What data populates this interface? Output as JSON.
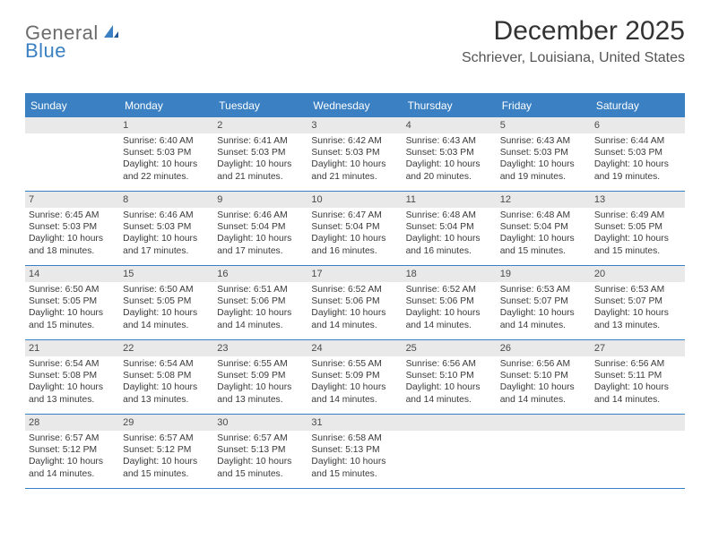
{
  "logo": {
    "text1": "General",
    "text2": "Blue"
  },
  "title": "December 2025",
  "location": "Schriever, Louisiana, United States",
  "colors": {
    "accent": "#3a80c3",
    "grey_band": "#e9e9e9",
    "text": "#323232",
    "logo_grey": "#6c6c6c",
    "background": "#ffffff"
  },
  "dow": [
    "Sunday",
    "Monday",
    "Tuesday",
    "Wednesday",
    "Thursday",
    "Friday",
    "Saturday"
  ],
  "weeks": [
    [
      {
        "n": "",
        "sr": "",
        "ss": "",
        "d1": "",
        "d2": ""
      },
      {
        "n": "1",
        "sr": "Sunrise: 6:40 AM",
        "ss": "Sunset: 5:03 PM",
        "d1": "Daylight: 10 hours",
        "d2": "and 22 minutes."
      },
      {
        "n": "2",
        "sr": "Sunrise: 6:41 AM",
        "ss": "Sunset: 5:03 PM",
        "d1": "Daylight: 10 hours",
        "d2": "and 21 minutes."
      },
      {
        "n": "3",
        "sr": "Sunrise: 6:42 AM",
        "ss": "Sunset: 5:03 PM",
        "d1": "Daylight: 10 hours",
        "d2": "and 21 minutes."
      },
      {
        "n": "4",
        "sr": "Sunrise: 6:43 AM",
        "ss": "Sunset: 5:03 PM",
        "d1": "Daylight: 10 hours",
        "d2": "and 20 minutes."
      },
      {
        "n": "5",
        "sr": "Sunrise: 6:43 AM",
        "ss": "Sunset: 5:03 PM",
        "d1": "Daylight: 10 hours",
        "d2": "and 19 minutes."
      },
      {
        "n": "6",
        "sr": "Sunrise: 6:44 AM",
        "ss": "Sunset: 5:03 PM",
        "d1": "Daylight: 10 hours",
        "d2": "and 19 minutes."
      }
    ],
    [
      {
        "n": "7",
        "sr": "Sunrise: 6:45 AM",
        "ss": "Sunset: 5:03 PM",
        "d1": "Daylight: 10 hours",
        "d2": "and 18 minutes."
      },
      {
        "n": "8",
        "sr": "Sunrise: 6:46 AM",
        "ss": "Sunset: 5:03 PM",
        "d1": "Daylight: 10 hours",
        "d2": "and 17 minutes."
      },
      {
        "n": "9",
        "sr": "Sunrise: 6:46 AM",
        "ss": "Sunset: 5:04 PM",
        "d1": "Daylight: 10 hours",
        "d2": "and 17 minutes."
      },
      {
        "n": "10",
        "sr": "Sunrise: 6:47 AM",
        "ss": "Sunset: 5:04 PM",
        "d1": "Daylight: 10 hours",
        "d2": "and 16 minutes."
      },
      {
        "n": "11",
        "sr": "Sunrise: 6:48 AM",
        "ss": "Sunset: 5:04 PM",
        "d1": "Daylight: 10 hours",
        "d2": "and 16 minutes."
      },
      {
        "n": "12",
        "sr": "Sunrise: 6:48 AM",
        "ss": "Sunset: 5:04 PM",
        "d1": "Daylight: 10 hours",
        "d2": "and 15 minutes."
      },
      {
        "n": "13",
        "sr": "Sunrise: 6:49 AM",
        "ss": "Sunset: 5:05 PM",
        "d1": "Daylight: 10 hours",
        "d2": "and 15 minutes."
      }
    ],
    [
      {
        "n": "14",
        "sr": "Sunrise: 6:50 AM",
        "ss": "Sunset: 5:05 PM",
        "d1": "Daylight: 10 hours",
        "d2": "and 15 minutes."
      },
      {
        "n": "15",
        "sr": "Sunrise: 6:50 AM",
        "ss": "Sunset: 5:05 PM",
        "d1": "Daylight: 10 hours",
        "d2": "and 14 minutes."
      },
      {
        "n": "16",
        "sr": "Sunrise: 6:51 AM",
        "ss": "Sunset: 5:06 PM",
        "d1": "Daylight: 10 hours",
        "d2": "and 14 minutes."
      },
      {
        "n": "17",
        "sr": "Sunrise: 6:52 AM",
        "ss": "Sunset: 5:06 PM",
        "d1": "Daylight: 10 hours",
        "d2": "and 14 minutes."
      },
      {
        "n": "18",
        "sr": "Sunrise: 6:52 AM",
        "ss": "Sunset: 5:06 PM",
        "d1": "Daylight: 10 hours",
        "d2": "and 14 minutes."
      },
      {
        "n": "19",
        "sr": "Sunrise: 6:53 AM",
        "ss": "Sunset: 5:07 PM",
        "d1": "Daylight: 10 hours",
        "d2": "and 14 minutes."
      },
      {
        "n": "20",
        "sr": "Sunrise: 6:53 AM",
        "ss": "Sunset: 5:07 PM",
        "d1": "Daylight: 10 hours",
        "d2": "and 13 minutes."
      }
    ],
    [
      {
        "n": "21",
        "sr": "Sunrise: 6:54 AM",
        "ss": "Sunset: 5:08 PM",
        "d1": "Daylight: 10 hours",
        "d2": "and 13 minutes."
      },
      {
        "n": "22",
        "sr": "Sunrise: 6:54 AM",
        "ss": "Sunset: 5:08 PM",
        "d1": "Daylight: 10 hours",
        "d2": "and 13 minutes."
      },
      {
        "n": "23",
        "sr": "Sunrise: 6:55 AM",
        "ss": "Sunset: 5:09 PM",
        "d1": "Daylight: 10 hours",
        "d2": "and 13 minutes."
      },
      {
        "n": "24",
        "sr": "Sunrise: 6:55 AM",
        "ss": "Sunset: 5:09 PM",
        "d1": "Daylight: 10 hours",
        "d2": "and 14 minutes."
      },
      {
        "n": "25",
        "sr": "Sunrise: 6:56 AM",
        "ss": "Sunset: 5:10 PM",
        "d1": "Daylight: 10 hours",
        "d2": "and 14 minutes."
      },
      {
        "n": "26",
        "sr": "Sunrise: 6:56 AM",
        "ss": "Sunset: 5:10 PM",
        "d1": "Daylight: 10 hours",
        "d2": "and 14 minutes."
      },
      {
        "n": "27",
        "sr": "Sunrise: 6:56 AM",
        "ss": "Sunset: 5:11 PM",
        "d1": "Daylight: 10 hours",
        "d2": "and 14 minutes."
      }
    ],
    [
      {
        "n": "28",
        "sr": "Sunrise: 6:57 AM",
        "ss": "Sunset: 5:12 PM",
        "d1": "Daylight: 10 hours",
        "d2": "and 14 minutes."
      },
      {
        "n": "29",
        "sr": "Sunrise: 6:57 AM",
        "ss": "Sunset: 5:12 PM",
        "d1": "Daylight: 10 hours",
        "d2": "and 15 minutes."
      },
      {
        "n": "30",
        "sr": "Sunrise: 6:57 AM",
        "ss": "Sunset: 5:13 PM",
        "d1": "Daylight: 10 hours",
        "d2": "and 15 minutes."
      },
      {
        "n": "31",
        "sr": "Sunrise: 6:58 AM",
        "ss": "Sunset: 5:13 PM",
        "d1": "Daylight: 10 hours",
        "d2": "and 15 minutes."
      },
      {
        "n": "",
        "sr": "",
        "ss": "",
        "d1": "",
        "d2": ""
      },
      {
        "n": "",
        "sr": "",
        "ss": "",
        "d1": "",
        "d2": ""
      },
      {
        "n": "",
        "sr": "",
        "ss": "",
        "d1": "",
        "d2": ""
      }
    ]
  ]
}
